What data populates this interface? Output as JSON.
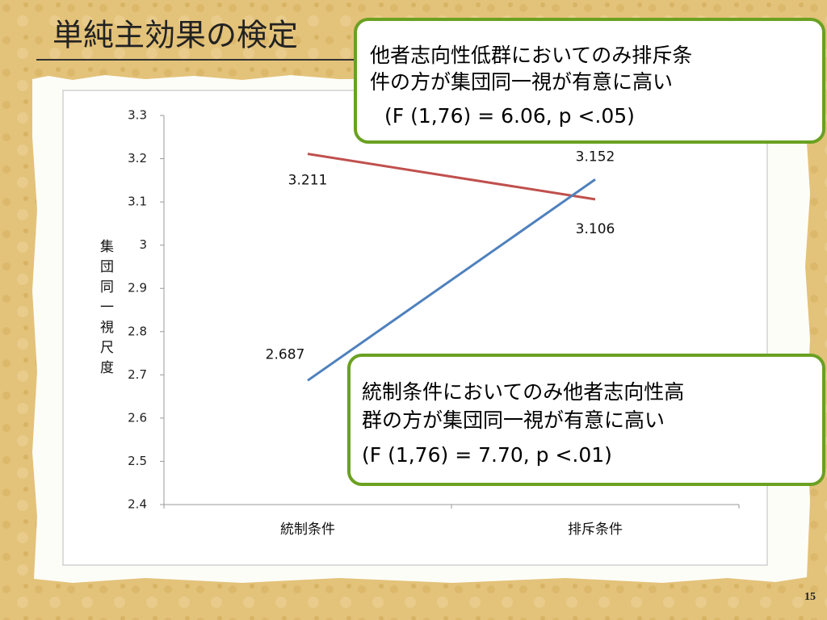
{
  "slide_title": "単純主効果の検定",
  "page_number": "15",
  "chart_data": {
    "type": "line",
    "y_label": "集団同一視尺度",
    "categories": [
      "統制条件",
      "排斥条件"
    ],
    "series": [
      {
        "color": "#c0504d",
        "values": [
          3.211,
          3.106
        ]
      },
      {
        "color": "#4f81bd",
        "values": [
          2.687,
          3.152
        ]
      }
    ],
    "ylim": [
      2.4,
      3.3
    ],
    "yticks": [
      2.4,
      2.5,
      2.6,
      2.7,
      2.8,
      2.9,
      3,
      3.1,
      3.2,
      3.3
    ]
  },
  "callouts": [
    {
      "lines": [
        "他者志向性低群においてのみ排斥条",
        "件の方が集団同一視が有意に高い",
        "(F (1,76) = 6.06, p <.05)"
      ]
    },
    {
      "lines": [
        "統制条件においてのみ他者志向性高",
        "群の方が集団同一視が有意に高い",
        "(F (1,76) = 7.70, p <.01)"
      ]
    }
  ]
}
